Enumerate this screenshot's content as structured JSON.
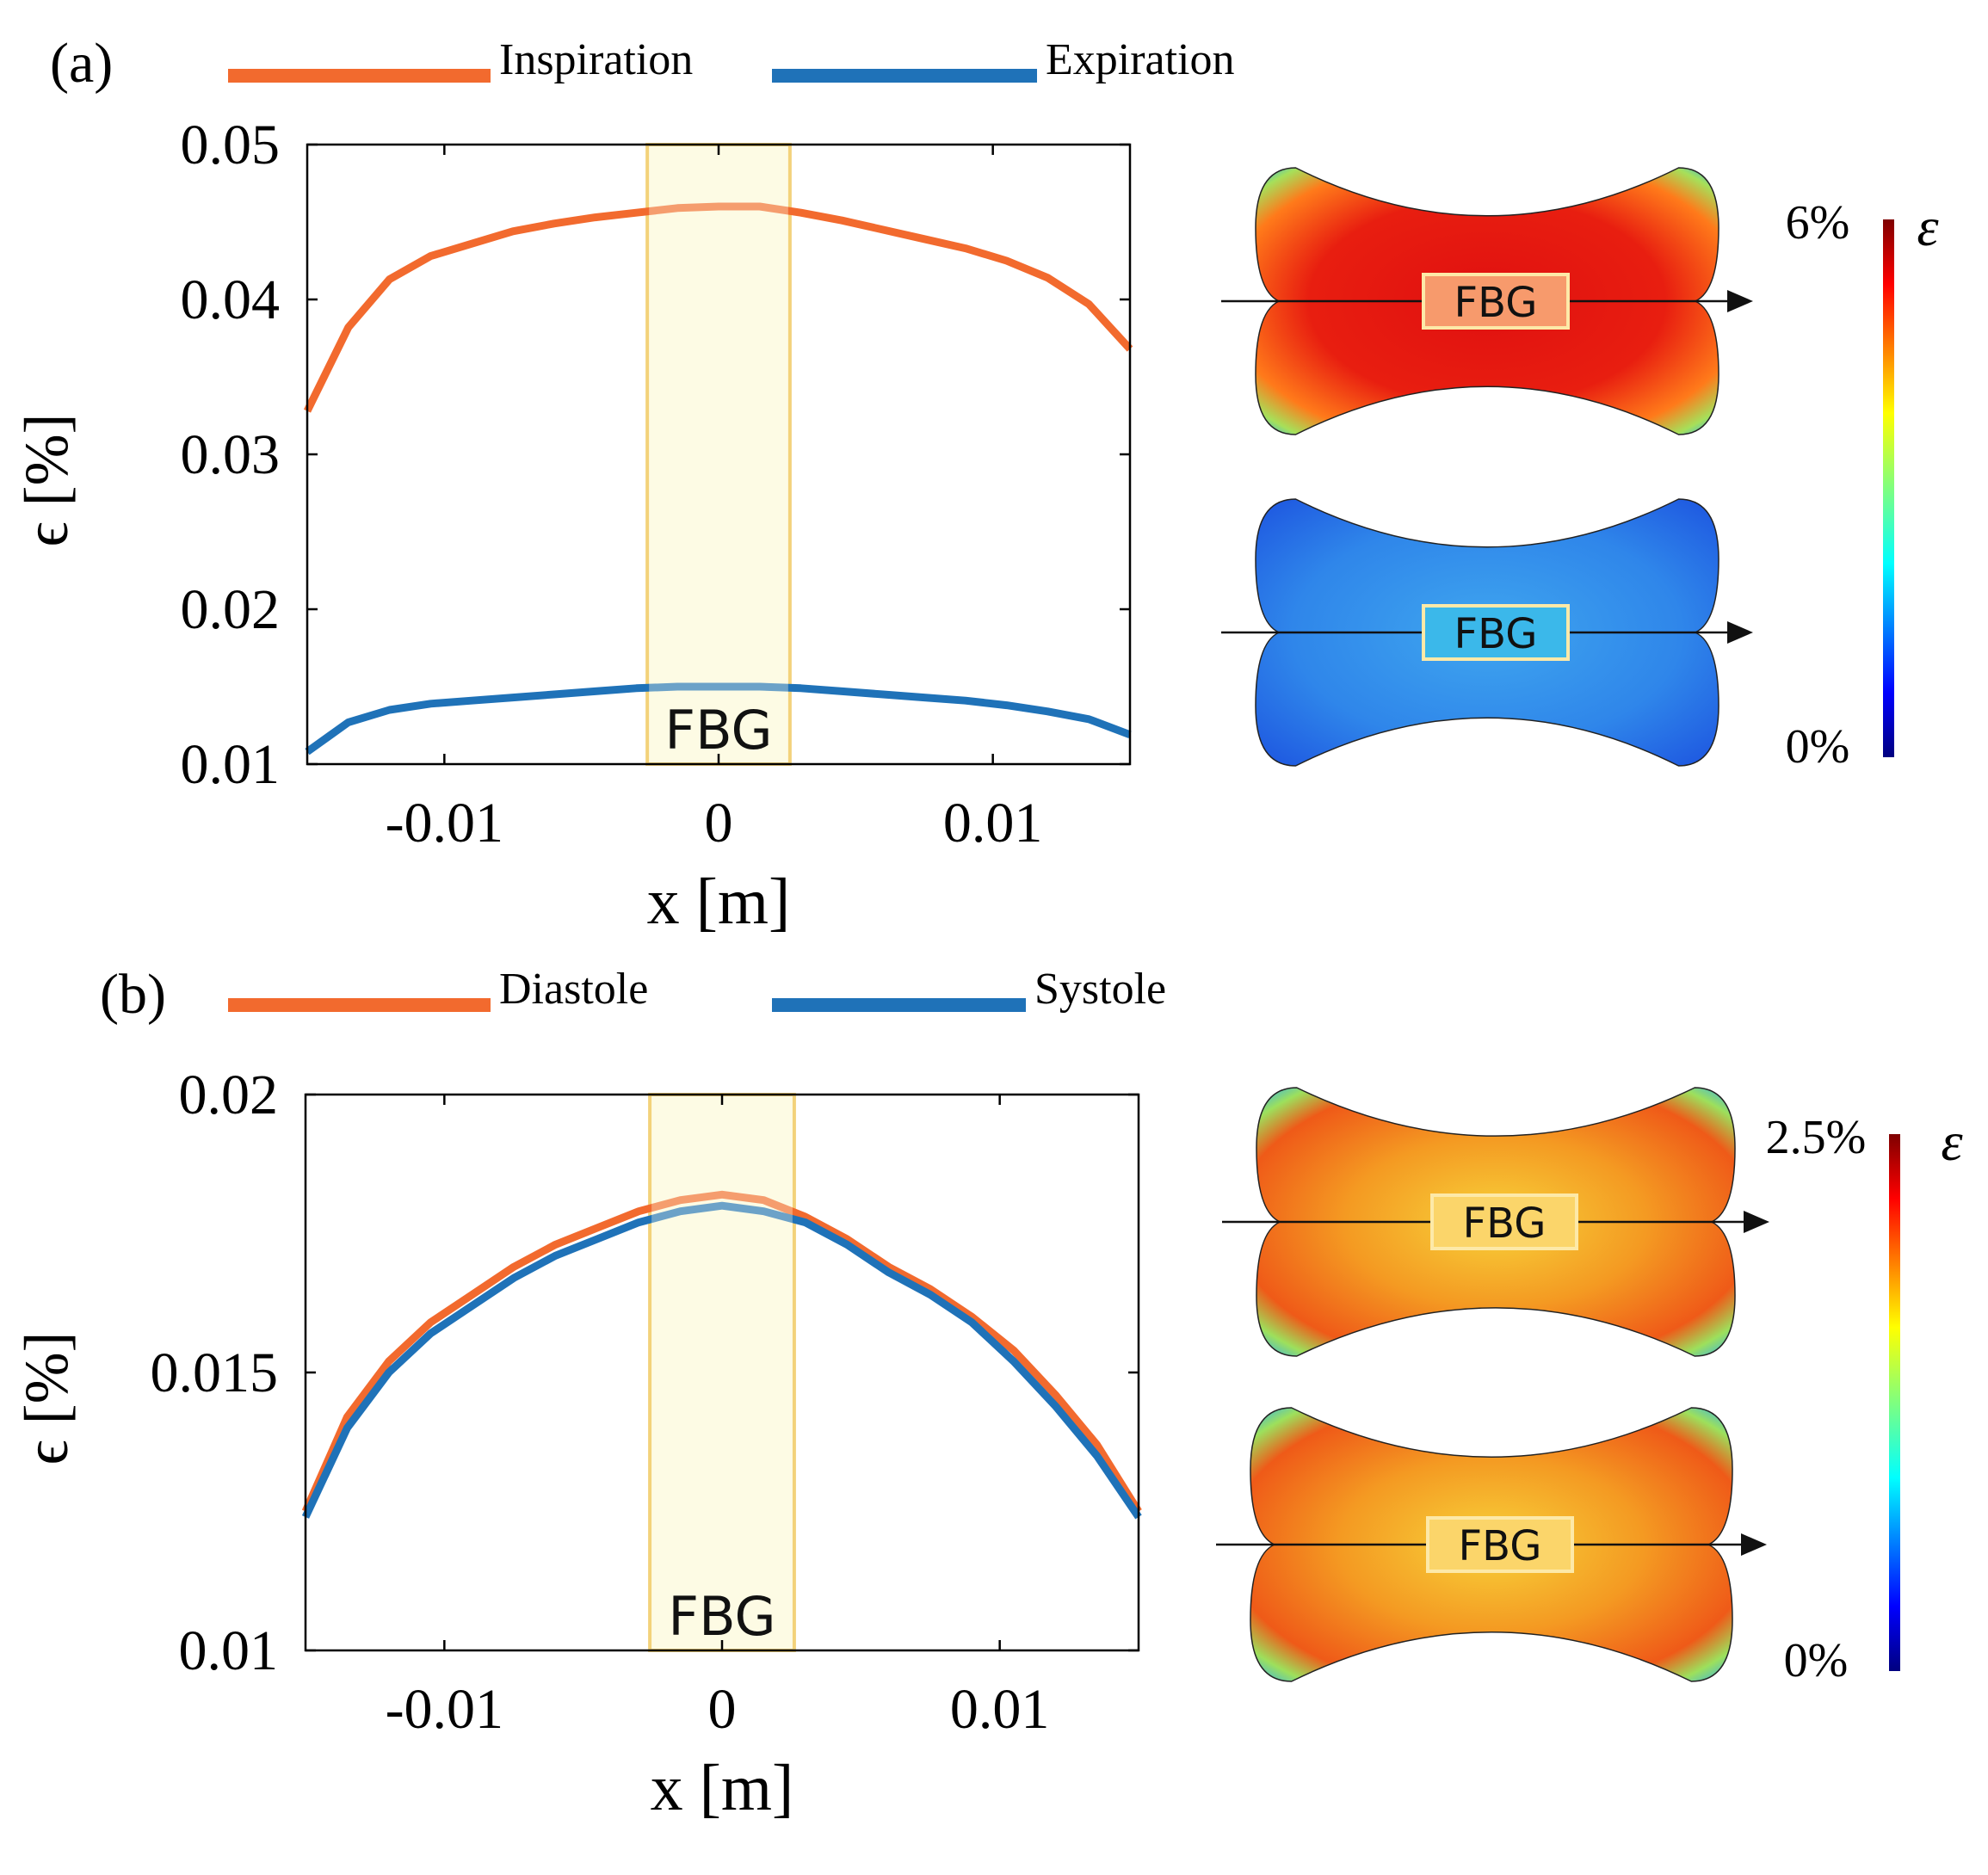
{
  "chart_data": [
    {
      "panel_label": "(a)",
      "type": "line",
      "xlabel": "x [m]",
      "ylabel": "ϵ [%]",
      "xlim": [
        -0.015,
        0.015
      ],
      "ylim": [
        0.01,
        0.05
      ],
      "xticks": [
        -0.01,
        0,
        0.01
      ],
      "xtick_labels": [
        "-0.01",
        "0",
        "0.01"
      ],
      "yticks": [
        0.01,
        0.02,
        0.03,
        0.04,
        0.05
      ],
      "ytick_labels": [
        "0.01",
        "0.02",
        "0.03",
        "0.04",
        "0.05"
      ],
      "highlight_region": {
        "label": "FBG",
        "x_range": [
          -0.0026,
          0.0026
        ]
      },
      "series": [
        {
          "name": "Inspiration",
          "color": "#f26a2e",
          "x": [
            -0.015,
            -0.0135,
            -0.012,
            -0.0105,
            -0.009,
            -0.0075,
            -0.006,
            -0.0045,
            -0.003,
            -0.0015,
            0,
            0.0015,
            0.003,
            0.0045,
            0.006,
            0.0075,
            0.009,
            0.0105,
            0.012,
            0.0135,
            0.015
          ],
          "y": [
            0.0328,
            0.0382,
            0.0413,
            0.0428,
            0.0436,
            0.0444,
            0.0449,
            0.0453,
            0.0456,
            0.0459,
            0.046,
            0.046,
            0.0456,
            0.0451,
            0.0445,
            0.0439,
            0.0433,
            0.0425,
            0.0414,
            0.0397,
            0.0368
          ]
        },
        {
          "name": "Expiration",
          "color": "#1f72b8",
          "x": [
            -0.015,
            -0.0135,
            -0.012,
            -0.0105,
            -0.009,
            -0.0075,
            -0.006,
            -0.0045,
            -0.003,
            -0.0015,
            0,
            0.0015,
            0.003,
            0.0045,
            0.006,
            0.0075,
            0.009,
            0.0105,
            0.012,
            0.0135,
            0.015
          ],
          "y": [
            0.0108,
            0.0127,
            0.0135,
            0.0139,
            0.0141,
            0.0143,
            0.0145,
            0.0147,
            0.0149,
            0.015,
            0.015,
            0.015,
            0.0149,
            0.0147,
            0.0145,
            0.0143,
            0.0141,
            0.0138,
            0.0134,
            0.0129,
            0.0119
          ]
        }
      ],
      "contour_plots": {
        "scale_max": "6%",
        "scale_min": "0%",
        "symbol": "ε",
        "shapes": [
          {
            "label": "FBG",
            "state": "inspiration",
            "fill_level": "high"
          },
          {
            "label": "FBG",
            "state": "expiration",
            "fill_level": "low"
          }
        ]
      }
    },
    {
      "panel_label": "(b)",
      "type": "line",
      "xlabel": "x [m]",
      "ylabel": "ϵ [%]",
      "xlim": [
        -0.015,
        0.015
      ],
      "ylim": [
        0.01,
        0.02
      ],
      "xticks": [
        -0.01,
        0,
        0.01
      ],
      "xtick_labels": [
        "-0.01",
        "0",
        "0.01"
      ],
      "yticks": [
        0.01,
        0.015,
        0.02
      ],
      "ytick_labels": [
        "0.01",
        "0.015",
        "0.02"
      ],
      "highlight_region": {
        "label": "FBG",
        "x_range": [
          -0.0026,
          0.0026
        ]
      },
      "series": [
        {
          "name": "Diastole",
          "color": "#f26a2e",
          "x": [
            -0.015,
            -0.0135,
            -0.012,
            -0.0105,
            -0.009,
            -0.0075,
            -0.006,
            -0.0045,
            -0.003,
            -0.0015,
            0,
            0.0015,
            0.003,
            0.0045,
            0.006,
            0.0075,
            0.009,
            0.0105,
            0.012,
            0.0135,
            0.015
          ],
          "y": [
            0.0125,
            0.0142,
            0.0152,
            0.0159,
            0.0164,
            0.0169,
            0.0173,
            0.0176,
            0.0179,
            0.0181,
            0.0182,
            0.0181,
            0.0178,
            0.0174,
            0.0169,
            0.0165,
            0.016,
            0.0154,
            0.0146,
            0.0137,
            0.0125
          ]
        },
        {
          "name": "Systole",
          "color": "#1f72b8",
          "x": [
            -0.015,
            -0.0135,
            -0.012,
            -0.0105,
            -0.009,
            -0.0075,
            -0.006,
            -0.0045,
            -0.003,
            -0.0015,
            0,
            0.0015,
            0.003,
            0.0045,
            0.006,
            0.0075,
            0.009,
            0.0105,
            0.012,
            0.0135,
            0.015
          ],
          "y": [
            0.0124,
            0.014,
            0.015,
            0.0157,
            0.0162,
            0.0167,
            0.0171,
            0.0174,
            0.0177,
            0.0179,
            0.018,
            0.0179,
            0.0177,
            0.0173,
            0.0168,
            0.0164,
            0.0159,
            0.0152,
            0.0144,
            0.0135,
            0.0124
          ]
        }
      ],
      "contour_plots": {
        "scale_max": "2.5%",
        "scale_min": "0%",
        "symbol": "ε",
        "shapes": [
          {
            "label": "FBG",
            "state": "diastole",
            "fill_level": "medium"
          },
          {
            "label": "FBG",
            "state": "systole",
            "fill_level": "medium"
          }
        ]
      }
    }
  ],
  "colors": {
    "inspiration": "#f26a2e",
    "expiration": "#1f72b8",
    "fbg_region_fill": "#fdfbe4",
    "fbg_region_stroke": "#f3d27a",
    "axis": "#000000"
  }
}
